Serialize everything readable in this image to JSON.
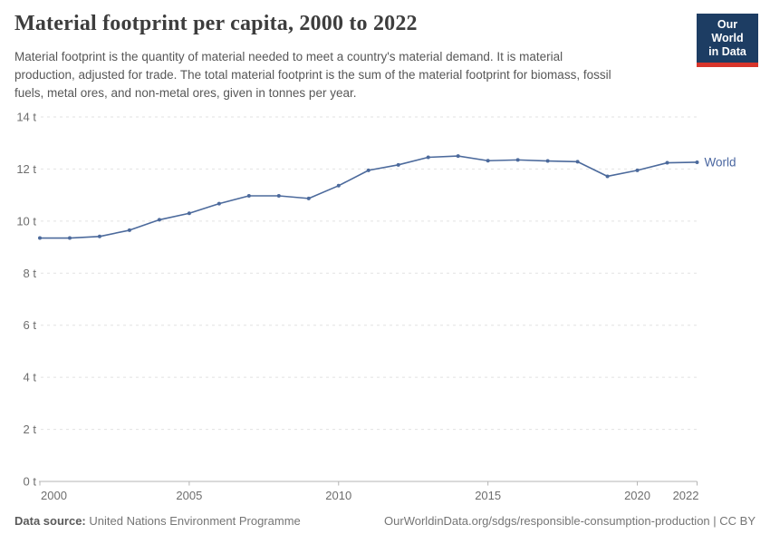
{
  "header": {
    "title": "Material footprint per capita, 2000 to 2022",
    "subtitle_lines": [
      "Material footprint is the quantity of material needed to meet a country's material demand. It is material",
      "production, adjusted for trade. The total material footprint is the sum of the material footprint for biomass, fossil",
      "fuels, metal ores, and non-metal ores, given in tonnes per year."
    ],
    "logo": {
      "line1": "Our World",
      "line2": "in Data",
      "bg_color": "#1d3d63",
      "stripe_color": "#d8352b"
    }
  },
  "chart_data": {
    "type": "line",
    "title": "Material footprint per capita, 2000 to 2022",
    "x": [
      2000,
      2001,
      2002,
      2003,
      2004,
      2005,
      2006,
      2007,
      2008,
      2009,
      2010,
      2011,
      2012,
      2013,
      2014,
      2015,
      2016,
      2017,
      2018,
      2019,
      2020,
      2021,
      2022
    ],
    "series": [
      {
        "name": "World",
        "color": "#4c6a9c",
        "values": [
          9.35,
          9.35,
          9.41,
          9.65,
          10.05,
          10.3,
          10.67,
          10.97,
          10.97,
          10.87,
          11.36,
          11.95,
          12.16,
          12.45,
          12.5,
          12.32,
          12.35,
          12.31,
          12.28,
          11.72,
          11.95,
          12.24,
          12.26
        ]
      }
    ],
    "unit": "t",
    "xlabel": "",
    "ylabel": "",
    "ylim": [
      0,
      14
    ],
    "xlim": [
      2000,
      2022
    ],
    "yticks": [
      0,
      2,
      4,
      6,
      8,
      10,
      12,
      14
    ],
    "ytick_format": "{v} t",
    "xticks": [
      2000,
      2005,
      2010,
      2015,
      2020,
      2022
    ],
    "grid": "horizontal-dashed",
    "legend_position": "end-of-line-label"
  },
  "footer": {
    "source_label": "Data source:",
    "source_value": "United Nations Environment Programme",
    "link": "OurWorldinData.org/sdgs/responsible-consumption-production | CC BY"
  }
}
